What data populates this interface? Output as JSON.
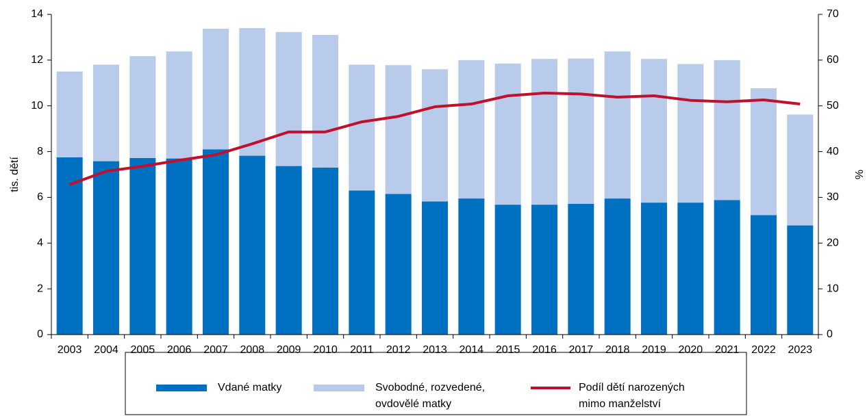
{
  "chart_data": {
    "type": "bar",
    "y_label": "tis. dětí",
    "y2_label": "%",
    "categories": [
      "2003",
      "2004",
      "2005",
      "2006",
      "2007",
      "2008",
      "2009",
      "2010",
      "2011",
      "2012",
      "2013",
      "2014",
      "2015",
      "2016",
      "2017",
      "2018",
      "2019",
      "2020",
      "2021",
      "2022",
      "2023"
    ],
    "series": [
      {
        "name": "Vdané matky",
        "type": "bar",
        "color": "#0070c0",
        "values": [
          7.75,
          7.58,
          7.72,
          7.7,
          8.1,
          7.82,
          7.37,
          7.3,
          6.3,
          6.15,
          5.82,
          5.95,
          5.68,
          5.68,
          5.72,
          5.95,
          5.77,
          5.77,
          5.88,
          5.22,
          4.77
        ]
      },
      {
        "name": "Svobodné, rozvedené, ovdovělé matky",
        "type": "bar",
        "color": "#b9cbeb",
        "values": [
          3.75,
          4.22,
          4.45,
          4.68,
          5.27,
          5.58,
          5.86,
          5.8,
          5.5,
          5.63,
          5.78,
          6.05,
          6.17,
          6.37,
          6.35,
          6.43,
          6.28,
          6.06,
          6.12,
          5.55,
          4.85
        ]
      },
      {
        "name": "Podíl dětí narozených mimo manželství",
        "type": "line",
        "axis": "y2",
        "color": "#c0102c",
        "values": [
          32.8,
          35.7,
          36.8,
          38.1,
          39.3,
          41.7,
          44.3,
          44.3,
          46.5,
          47.7,
          49.8,
          50.4,
          52.2,
          52.8,
          52.6,
          51.9,
          52.2,
          51.2,
          50.9,
          51.3,
          50.4
        ]
      }
    ],
    "stacked": true,
    "ylim": [
      0,
      14
    ],
    "yticks": [
      0,
      2,
      4,
      6,
      8,
      10,
      12,
      14
    ],
    "y2lim": [
      0,
      70
    ],
    "y2ticks": [
      0,
      10,
      20,
      30,
      40,
      50,
      60,
      70
    ],
    "legend": "bottom"
  }
}
